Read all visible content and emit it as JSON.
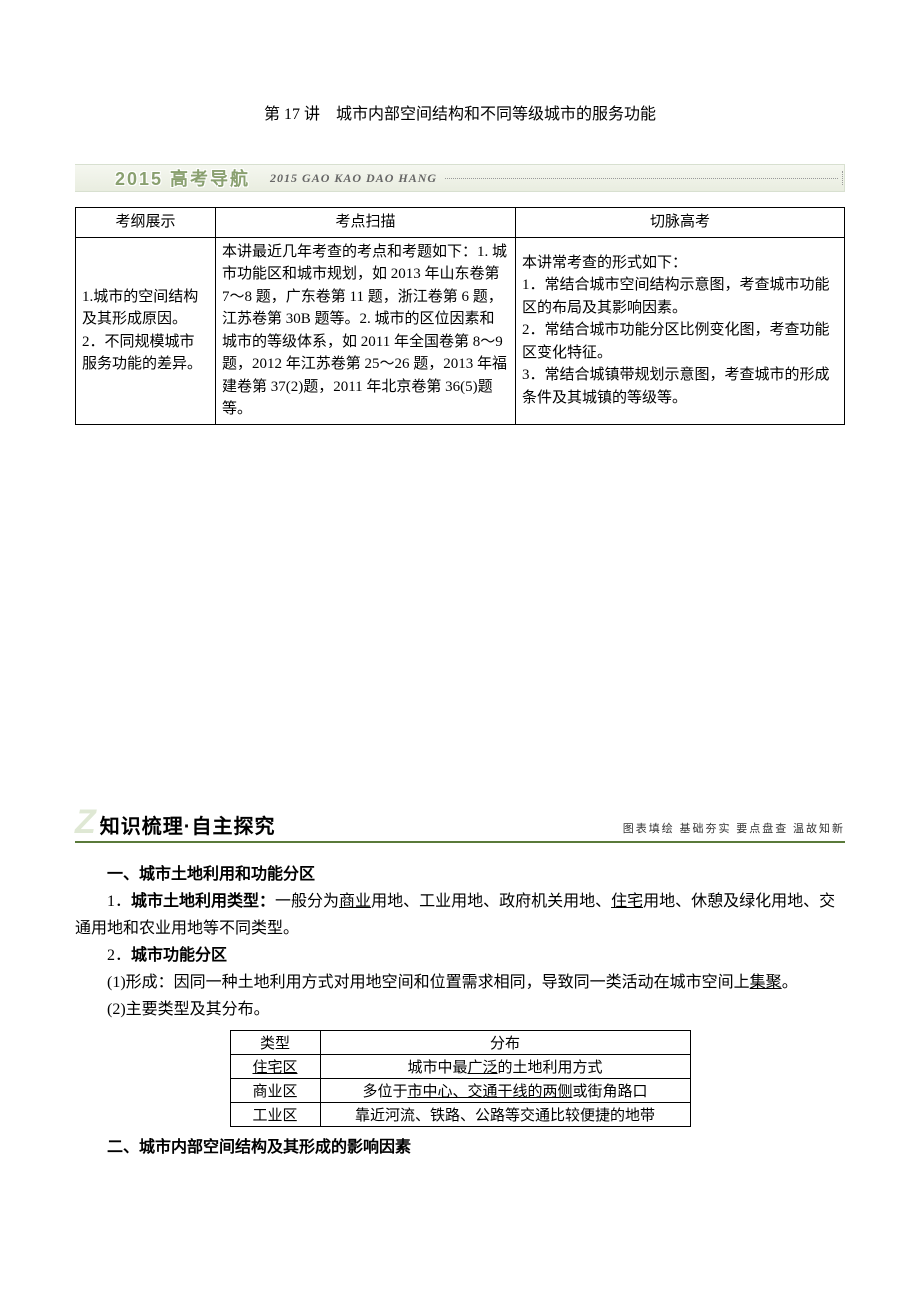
{
  "title": "第 17 讲　城市内部空间结构和不同等级城市的服务功能",
  "banner1": {
    "title": "2015 高考导航",
    "subtitle": "2015 GAO KAO DAO HANG"
  },
  "table1": {
    "headers": [
      "考纲展示",
      "考点扫描",
      "切脉高考"
    ],
    "row": {
      "c1": "1.城市的空间结构及其形成原因。\n2．不同规模城市服务功能的差异。",
      "c2": "本讲最近几年考查的考点和考题如下：1. 城市功能区和城市规划，如 2013 年山东卷第 7～8 题，广东卷第 11 题，浙江卷第 6 题，江苏卷第 30B 题等。2. 城市的区位因素和城市的等级体系，如 2011 年全国卷第 8～9 题，2012 年江苏卷第 25～26 题，2013 年福建卷第 37(2)题，2011 年北京卷第 36(5)题等。",
      "c3": "本讲常考查的形式如下：\n1．常结合城市空间结构示意图，考查城市功能区的布局及其影响因素。\n2．常结合城市功能分区比例变化图，考查功能区变化特征。\n3．常结合城镇带规划示意图，考查城市的形成条件及其城镇的等级等。"
    }
  },
  "banner2": {
    "letter": "Z",
    "title": "知识梳理·自主探究",
    "subtitle": "图表填绘  基础夯实  要点盘查  温故知新"
  },
  "section1": {
    "heading": "一、城市土地利用和功能分区",
    "p1_pre": "1．",
    "p1_b": "城市土地利用类型：",
    "p1_a": "一般分为",
    "p1_u1": "商业",
    "p1_m": "用地、工业用地、政府机关用地、",
    "p1_u2": "住宅",
    "p1_e": "用地、休憩及绿化用地、交通用地和农业用地等不同类型。",
    "p2": "2．",
    "p2b": "城市功能分区",
    "p3a": "(1)形成：因同一种土地利用方式对用地空间和位置需求相同，导致同一类活动在城市空间上",
    "p3u": "集聚",
    "p3e": "。",
    "p4": "(2)主要类型及其分布。"
  },
  "table2": {
    "h1": "类型",
    "h2": "分布",
    "r1a": "住宅区",
    "r1b_pre": "城市中最",
    "r1b_u": "广泛",
    "r1b_post": "的土地利用方式",
    "r2a": "商业区",
    "r2b_pre": "多位于",
    "r2b_u": "市中心、交通干线的两侧",
    "r2b_post": "或街角路口",
    "r3a": "工业区",
    "r3b": "靠近河流、铁路、公路等交通比较便捷的地带"
  },
  "section2": {
    "heading": "二、城市内部空间结构及其形成的影响因素"
  }
}
